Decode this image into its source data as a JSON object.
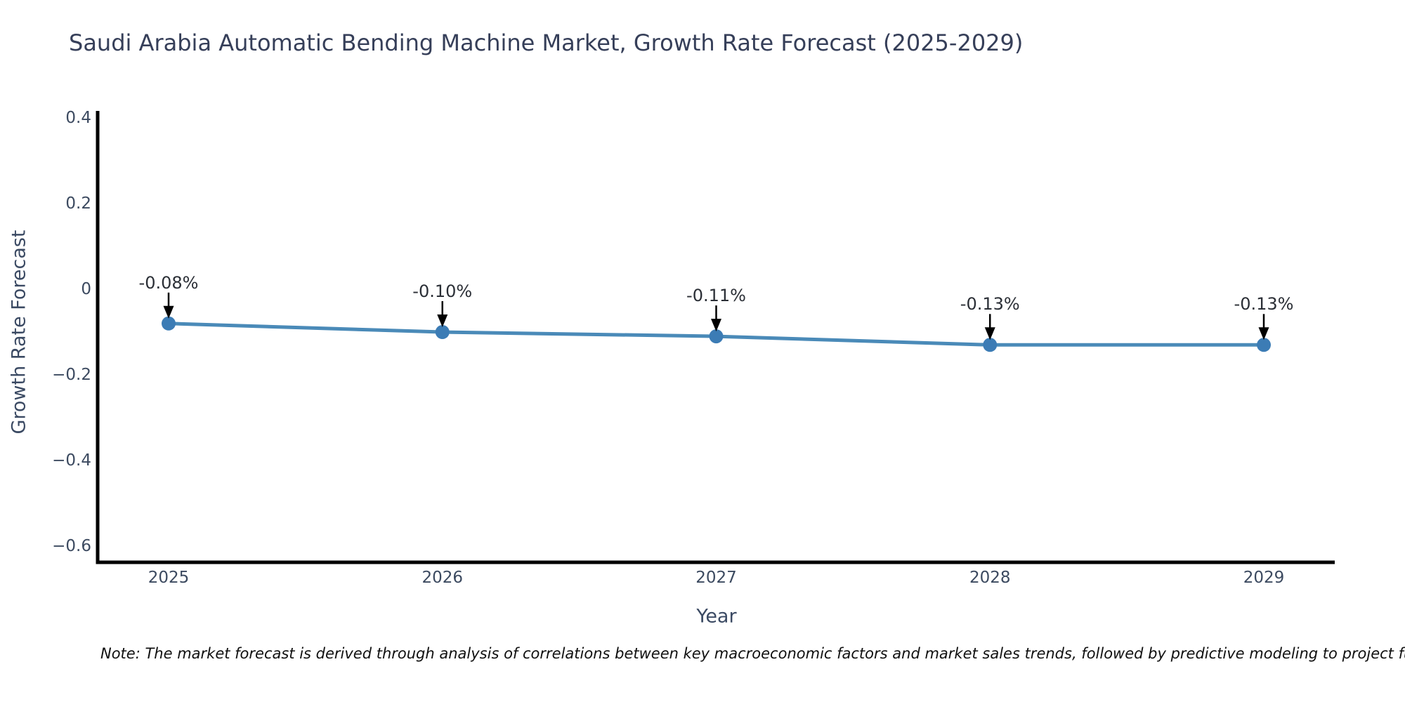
{
  "page": {
    "title": "Saudi Arabia Automatic Bending Machine Market, Growth Rate Forecast (2025-2029)",
    "note": "Note: The market forecast is derived through analysis of correlations between key macroeconomic factors and market sales trends, followed by predictive modeling to project future sales."
  },
  "chart_data": {
    "type": "line",
    "title": "Saudi Arabia Automatic Bending Machine Market, Growth Rate Forecast (2025-2029)",
    "xlabel": "Year",
    "ylabel": "Growth Rate Forecast",
    "categories": [
      "2025",
      "2026",
      "2027",
      "2028",
      "2029"
    ],
    "series": [
      {
        "name": "Growth Rate Forecast",
        "values": [
          -0.08,
          -0.1,
          -0.11,
          -0.13,
          -0.13
        ]
      }
    ],
    "point_labels": [
      "-0.08%",
      "-0.10%",
      "-0.11%",
      "-0.13%",
      "-0.13%"
    ],
    "ytick_values": [
      0.4,
      0.2,
      0,
      -0.2,
      -0.4,
      -0.6
    ],
    "ytick_labels": [
      "0.4",
      "0.2",
      "0",
      "−0.2",
      "−0.4",
      "−0.6"
    ],
    "ylim": [
      -0.64,
      0.42
    ],
    "grid": false,
    "legend_position": "none",
    "annotation_style": "black-arrow-pointing-down-to-marker",
    "colors": {
      "line": "#4a8ab8",
      "marker": "#3c7cb5",
      "arrow": "#000000",
      "spine": "#000000",
      "tick_text": "#3c4a60",
      "title_text": "#363f59",
      "note_text": "#101010"
    }
  }
}
